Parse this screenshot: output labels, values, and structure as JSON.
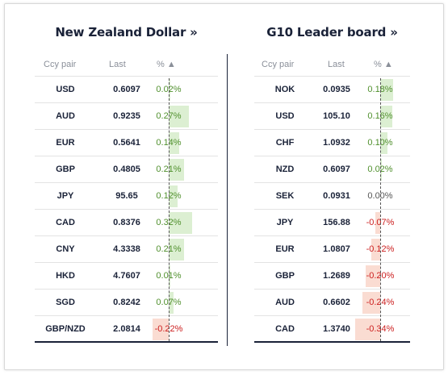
{
  "left": {
    "title": "New Zealand Dollar »",
    "headers": {
      "pair": "Ccy pair",
      "last": "Last",
      "pct": "% ▲"
    },
    "rows": [
      {
        "pair": "USD",
        "last": "0.6097",
        "pct": "0.02%",
        "value": 0.02
      },
      {
        "pair": "AUD",
        "last": "0.9235",
        "pct": "0.27%",
        "value": 0.27
      },
      {
        "pair": "EUR",
        "last": "0.5641",
        "pct": "0.14%",
        "value": 0.14
      },
      {
        "pair": "GBP",
        "last": "0.4805",
        "pct": "0.21%",
        "value": 0.21
      },
      {
        "pair": "JPY",
        "last": "95.65",
        "pct": "0.12%",
        "value": 0.12
      },
      {
        "pair": "CAD",
        "last": "0.8376",
        "pct": "0.32%",
        "value": 0.32
      },
      {
        "pair": "CNY",
        "last": "4.3338",
        "pct": "0.21%",
        "value": 0.21
      },
      {
        "pair": "HKD",
        "last": "4.7607",
        "pct": "0.01%",
        "value": 0.01
      },
      {
        "pair": "SGD",
        "last": "0.8242",
        "pct": "0.07%",
        "value": 0.07
      },
      {
        "pair": "GBP/NZD",
        "last": "2.0814",
        "pct": "-0.22%",
        "value": -0.22
      }
    ]
  },
  "right": {
    "title": "G10 Leader board »",
    "headers": {
      "pair": "Ccy pair",
      "last": "Last",
      "pct": "% ▲"
    },
    "rows": [
      {
        "pair": "NOK",
        "last": "0.0935",
        "pct": "0.18%",
        "value": 0.18
      },
      {
        "pair": "USD",
        "last": "105.10",
        "pct": "0.16%",
        "value": 0.16
      },
      {
        "pair": "CHF",
        "last": "1.0932",
        "pct": "0.10%",
        "value": 0.1
      },
      {
        "pair": "NZD",
        "last": "0.6097",
        "pct": "0.02%",
        "value": 0.02
      },
      {
        "pair": "SEK",
        "last": "0.0931",
        "pct": "0.00%",
        "value": 0.0
      },
      {
        "pair": "JPY",
        "last": "156.88",
        "pct": "-0.07%",
        "value": -0.07
      },
      {
        "pair": "EUR",
        "last": "1.0807",
        "pct": "-0.12%",
        "value": -0.12
      },
      {
        "pair": "GBP",
        "last": "1.2689",
        "pct": "-0.20%",
        "value": -0.2
      },
      {
        "pair": "AUD",
        "last": "0.6602",
        "pct": "-0.24%",
        "value": -0.24
      },
      {
        "pair": "CAD",
        "last": "1.3740",
        "pct": "-0.34%",
        "value": -0.34
      }
    ]
  },
  "colors": {
    "positive_text": "#4f8f2c",
    "negative_text": "#cc1f1f",
    "neutral_text": "#555555",
    "positive_bar": "#dcefd2",
    "negative_bar": "#fadcd2",
    "ink": "#1a2238"
  }
}
